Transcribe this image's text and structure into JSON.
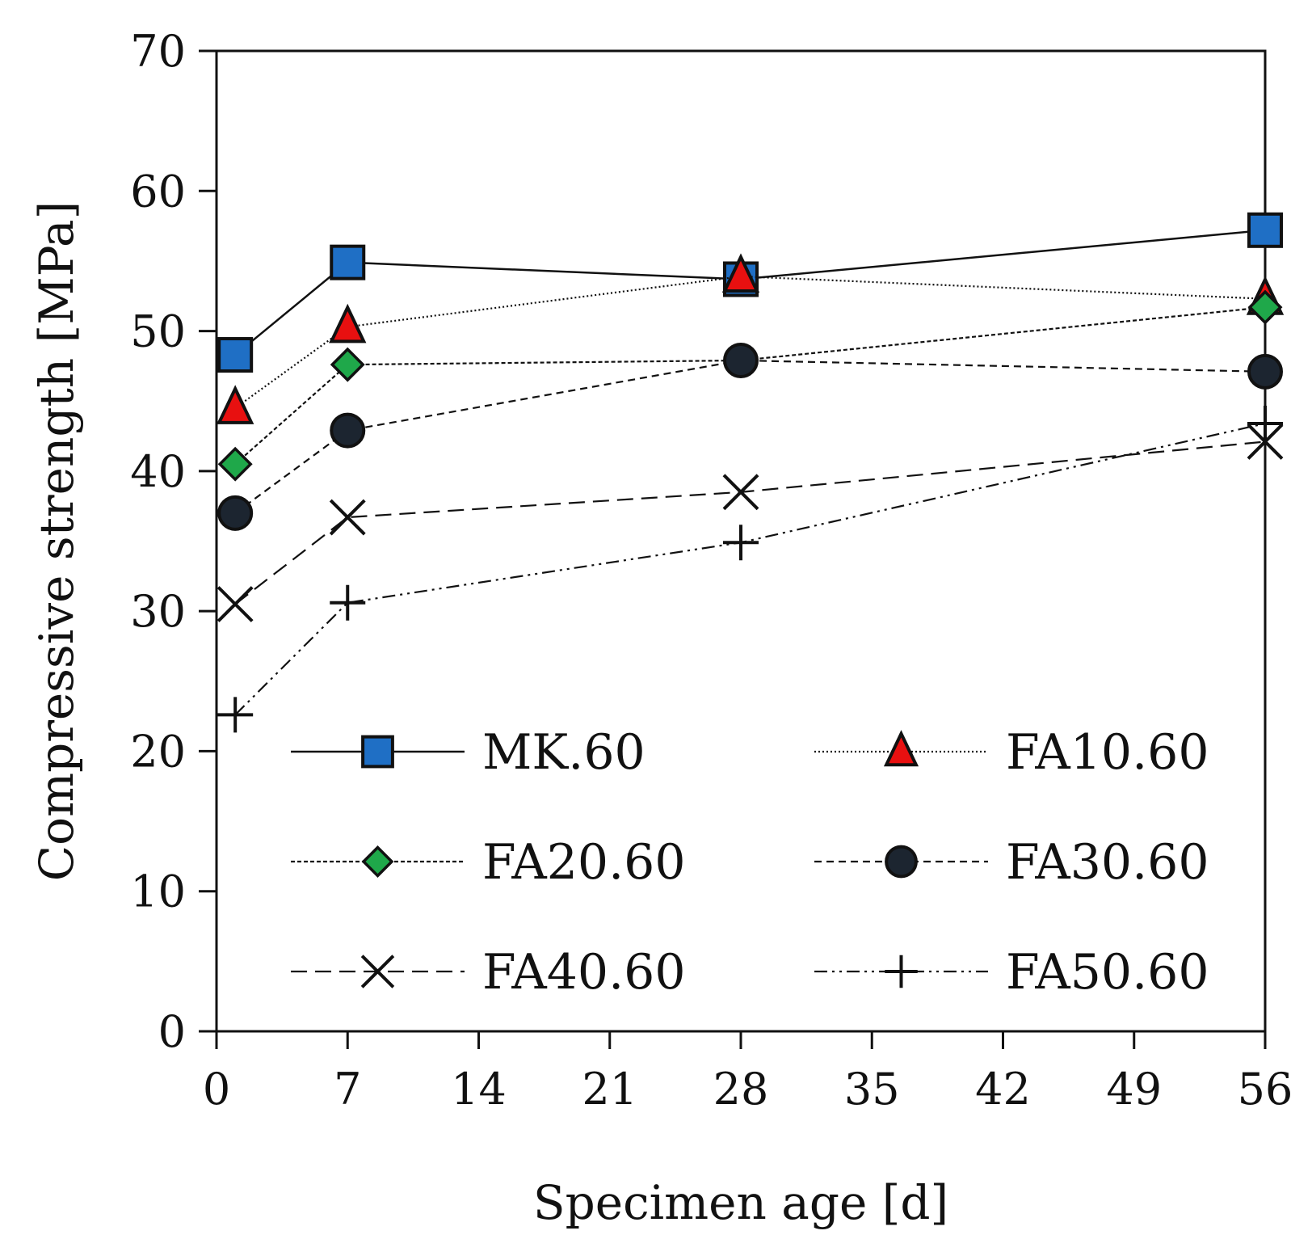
{
  "chart_data": {
    "type": "line",
    "title": "",
    "xlabel": "Specimen age [d]",
    "ylabel": "Compressive strength [MPa]",
    "xlim": [
      0,
      56
    ],
    "ylim": [
      0,
      70
    ],
    "xticks": [
      "0",
      "7",
      "14",
      "21",
      "28",
      "35",
      "42",
      "49",
      "56"
    ],
    "yticks": [
      "0",
      "10",
      "20",
      "30",
      "40",
      "50",
      "60",
      "70"
    ],
    "grid": false,
    "legend_position": "bottom-inside",
    "x": [
      1,
      7,
      28,
      56
    ],
    "series": [
      {
        "name": "MK.60",
        "marker": "square",
        "line": "solid",
        "color": "#1f6fc5",
        "values": [
          48.3,
          54.9,
          53.7,
          57.2
        ]
      },
      {
        "name": "FA10.60",
        "marker": "triangle",
        "line": "dotted",
        "color": "#e81010",
        "values": [
          44.5,
          50.3,
          53.9,
          52.3
        ]
      },
      {
        "name": "FA20.60",
        "marker": "diamond",
        "line": "fine-dashed",
        "color": "#1fa84a",
        "values": [
          40.5,
          47.6,
          47.9,
          51.7
        ]
      },
      {
        "name": "FA30.60",
        "marker": "circle",
        "line": "dashed",
        "color": "#1c2530",
        "values": [
          37.0,
          42.9,
          47.9,
          47.1
        ]
      },
      {
        "name": "FA40.60",
        "marker": "x",
        "line": "long-dashed",
        "color": "#111111",
        "values": [
          30.5,
          36.7,
          38.5,
          42.1
        ]
      },
      {
        "name": "FA50.60",
        "marker": "plus",
        "line": "dash-dot-dot",
        "color": "#111111",
        "values": [
          22.6,
          30.6,
          34.9,
          43.4
        ]
      }
    ]
  }
}
